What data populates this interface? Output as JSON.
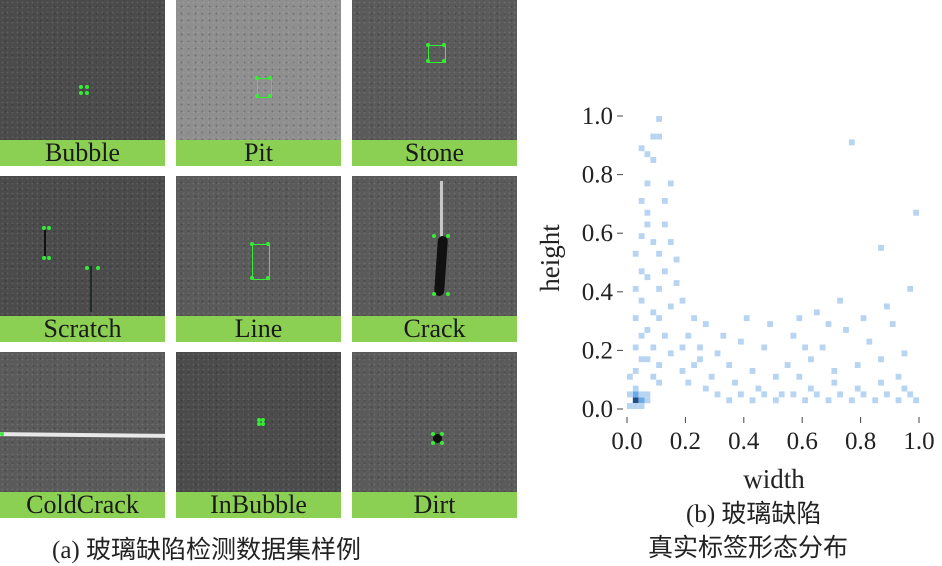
{
  "panel_a": {
    "tiles": [
      {
        "label": "Bubble"
      },
      {
        "label": "Pit"
      },
      {
        "label": "Stone"
      },
      {
        "label": "Scratch"
      },
      {
        "label": "Line"
      },
      {
        "label": "Crack"
      },
      {
        "label": "ColdCrack"
      },
      {
        "label": "InBubble"
      },
      {
        "label": "Dirt"
      }
    ],
    "caption": "(a) 玻璃缺陷检测数据集样例"
  },
  "panel_b": {
    "caption_line1": "(b) 玻璃缺陷",
    "caption_line2": "真实标签形态分布"
  },
  "colors": {
    "label_bg": "#8cd053",
    "bin_light": "#b7d5f3",
    "bin_mid": "#6aaae7",
    "bin_dark": "#1f4f86",
    "marker_green": "#33ee33"
  },
  "chart_data": {
    "type": "heatmap",
    "xlabel": "width",
    "ylabel": "height",
    "xlim": [
      0,
      1
    ],
    "ylim": [
      0,
      1
    ],
    "xticks": [
      "0.0",
      "0.2",
      "0.4",
      "0.6",
      "0.8",
      "1.0"
    ],
    "yticks": [
      "0.0",
      "0.2",
      "0.4",
      "0.6",
      "0.8",
      "1.0"
    ],
    "bin_size": 0.02,
    "cells": [
      [
        0.02,
        0.02,
        3
      ],
      [
        0.04,
        0.02,
        2
      ],
      [
        0.02,
        0.04,
        2
      ],
      [
        0.06,
        0.02,
        1
      ],
      [
        0.0,
        0.0,
        1
      ],
      [
        0.02,
        0.0,
        1
      ],
      [
        0.04,
        0.0,
        1
      ],
      [
        0.04,
        0.04,
        1
      ],
      [
        0.06,
        0.04,
        1
      ],
      [
        0.02,
        0.06,
        1
      ],
      [
        0.0,
        0.04,
        1
      ],
      [
        0.0,
        0.1,
        1
      ],
      [
        0.02,
        0.12,
        1
      ],
      [
        0.04,
        0.16,
        1
      ],
      [
        0.02,
        0.2,
        1
      ],
      [
        0.04,
        0.24,
        1
      ],
      [
        0.02,
        0.3,
        1
      ],
      [
        0.04,
        0.36,
        1
      ],
      [
        0.02,
        0.4,
        1
      ],
      [
        0.04,
        0.46,
        1
      ],
      [
        0.02,
        0.52,
        1
      ],
      [
        0.04,
        0.58,
        1
      ],
      [
        0.06,
        0.62,
        1
      ],
      [
        0.04,
        0.7,
        1
      ],
      [
        0.06,
        0.76,
        1
      ],
      [
        0.08,
        0.84,
        1
      ],
      [
        0.04,
        0.88,
        1
      ],
      [
        0.08,
        0.92,
        1
      ],
      [
        0.1,
        0.98,
        1
      ],
      [
        0.1,
        0.92,
        1
      ],
      [
        0.06,
        0.86,
        1
      ],
      [
        0.08,
        0.1,
        1
      ],
      [
        0.1,
        0.14,
        1
      ],
      [
        0.08,
        0.2,
        1
      ],
      [
        0.12,
        0.24,
        1
      ],
      [
        0.1,
        0.3,
        1
      ],
      [
        0.14,
        0.34,
        1
      ],
      [
        0.1,
        0.4,
        1
      ],
      [
        0.12,
        0.46,
        1
      ],
      [
        0.1,
        0.52,
        1
      ],
      [
        0.14,
        0.56,
        1
      ],
      [
        0.16,
        0.5,
        1
      ],
      [
        0.12,
        0.62,
        1
      ],
      [
        0.16,
        0.42,
        1
      ],
      [
        0.18,
        0.36,
        1
      ],
      [
        0.14,
        0.18,
        1
      ],
      [
        0.18,
        0.12,
        1
      ],
      [
        0.06,
        0.16,
        1
      ],
      [
        0.06,
        0.26,
        1
      ],
      [
        0.08,
        0.32,
        1
      ],
      [
        0.06,
        0.44,
        1
      ],
      [
        0.08,
        0.56,
        1
      ],
      [
        0.12,
        0.7,
        1
      ],
      [
        0.14,
        0.76,
        1
      ],
      [
        0.06,
        0.66,
        1
      ],
      [
        0.1,
        0.08,
        1
      ],
      [
        0.2,
        0.08,
        1
      ],
      [
        0.22,
        0.14,
        1
      ],
      [
        0.24,
        0.2,
        1
      ],
      [
        0.26,
        0.28,
        1
      ],
      [
        0.2,
        0.24,
        1
      ],
      [
        0.28,
        0.1,
        1
      ],
      [
        0.3,
        0.18,
        1
      ],
      [
        0.32,
        0.24,
        1
      ],
      [
        0.26,
        0.06,
        1
      ],
      [
        0.34,
        0.14,
        1
      ],
      [
        0.36,
        0.08,
        1
      ],
      [
        0.38,
        0.22,
        1
      ],
      [
        0.4,
        0.3,
        1
      ],
      [
        0.42,
        0.12,
        1
      ],
      [
        0.44,
        0.06,
        1
      ],
      [
        0.46,
        0.2,
        1
      ],
      [
        0.48,
        0.28,
        1
      ],
      [
        0.5,
        0.1,
        1
      ],
      [
        0.52,
        0.04,
        1
      ],
      [
        0.54,
        0.14,
        1
      ],
      [
        0.56,
        0.24,
        1
      ],
      [
        0.22,
        0.3,
        1
      ],
      [
        0.18,
        0.2,
        1
      ],
      [
        0.24,
        0.16,
        1
      ],
      [
        0.3,
        0.04,
        1
      ],
      [
        0.34,
        0.02,
        1
      ],
      [
        0.38,
        0.04,
        1
      ],
      [
        0.42,
        0.02,
        1
      ],
      [
        0.46,
        0.04,
        1
      ],
      [
        0.5,
        0.02,
        1
      ],
      [
        0.56,
        0.04,
        1
      ],
      [
        0.6,
        0.02,
        1
      ],
      [
        0.64,
        0.04,
        1
      ],
      [
        0.68,
        0.02,
        1
      ],
      [
        0.72,
        0.04,
        1
      ],
      [
        0.76,
        0.02,
        1
      ],
      [
        0.8,
        0.04,
        1
      ],
      [
        0.84,
        0.02,
        1
      ],
      [
        0.88,
        0.04,
        1
      ],
      [
        0.92,
        0.02,
        1
      ],
      [
        0.96,
        0.04,
        1
      ],
      [
        0.98,
        0.02,
        1
      ],
      [
        0.62,
        0.06,
        1
      ],
      [
        0.7,
        0.08,
        1
      ],
      [
        0.78,
        0.06,
        1
      ],
      [
        0.86,
        0.08,
        1
      ],
      [
        0.94,
        0.06,
        1
      ],
      [
        0.58,
        0.1,
        1
      ],
      [
        0.62,
        0.16,
        1
      ],
      [
        0.66,
        0.2,
        1
      ],
      [
        0.7,
        0.12,
        1
      ],
      [
        0.74,
        0.26,
        1
      ],
      [
        0.78,
        0.14,
        1
      ],
      [
        0.82,
        0.22,
        1
      ],
      [
        0.86,
        0.16,
        1
      ],
      [
        0.9,
        0.28,
        1
      ],
      [
        0.94,
        0.18,
        1
      ],
      [
        0.96,
        0.4,
        1
      ],
      [
        0.88,
        0.34,
        1
      ],
      [
        0.98,
        0.66,
        1
      ],
      [
        0.86,
        0.54,
        1
      ],
      [
        0.76,
        0.9,
        1
      ],
      [
        0.64,
        0.32,
        1
      ],
      [
        0.72,
        0.36,
        1
      ],
      [
        0.58,
        0.3,
        1
      ],
      [
        0.68,
        0.28,
        1
      ],
      [
        0.92,
        0.1,
        1
      ],
      [
        0.8,
        0.3,
        1
      ],
      [
        0.6,
        0.2,
        1
      ]
    ]
  }
}
